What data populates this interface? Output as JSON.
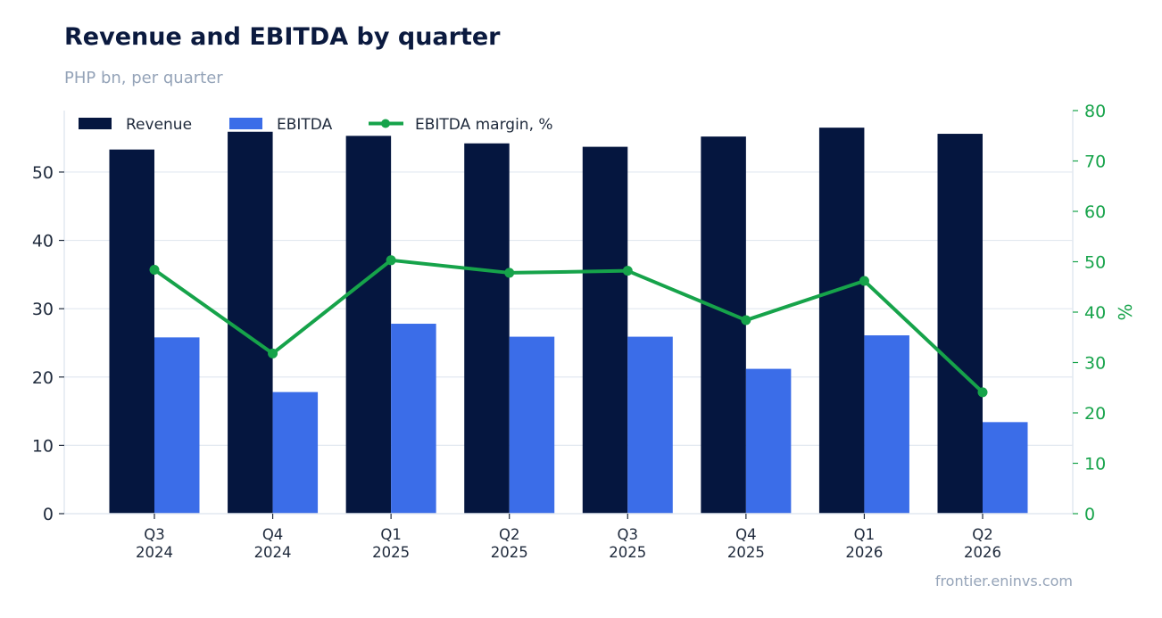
{
  "header": {
    "title": "Revenue and EBITDA by quarter",
    "subtitle": "PHP bn, per quarter"
  },
  "footer": {
    "source": "frontier.eninvs.com"
  },
  "colors": {
    "revenue": "#05163f",
    "ebitda": "#3b6de8",
    "margin": "#16a34a",
    "grid": "#e2e8f0",
    "axis_text": "#1e293b"
  },
  "chart_data": {
    "type": "bar",
    "categories": [
      [
        "Q3",
        "2024"
      ],
      [
        "Q4",
        "2024"
      ],
      [
        "Q1",
        "2025"
      ],
      [
        "Q2",
        "2025"
      ],
      [
        "Q3",
        "2025"
      ],
      [
        "Q4",
        "2025"
      ],
      [
        "Q1",
        "2026"
      ],
      [
        "Q2",
        "2026"
      ]
    ],
    "series": [
      {
        "name": "Revenue",
        "type": "bar",
        "axis": "left",
        "values": [
          53.3,
          55.9,
          55.3,
          54.2,
          53.7,
          55.2,
          56.5,
          55.6
        ]
      },
      {
        "name": "EBITDA",
        "type": "bar",
        "axis": "left",
        "values": [
          25.8,
          17.8,
          27.8,
          25.9,
          25.9,
          21.2,
          26.1,
          13.4
        ]
      },
      {
        "name": "EBITDA margin, %",
        "type": "line",
        "axis": "right",
        "values": [
          48.4,
          31.8,
          50.3,
          47.8,
          48.2,
          38.4,
          46.2,
          24.1
        ]
      }
    ],
    "left_axis": {
      "ylim": [
        0,
        59
      ],
      "ticks": [
        0,
        10,
        20,
        30,
        40,
        50
      ],
      "label": ""
    },
    "right_axis": {
      "ylim": [
        0,
        80
      ],
      "ticks": [
        0,
        10,
        20,
        30,
        40,
        50,
        60,
        70,
        80
      ],
      "label": "%"
    },
    "grid": true,
    "legend_position": "top-left"
  }
}
